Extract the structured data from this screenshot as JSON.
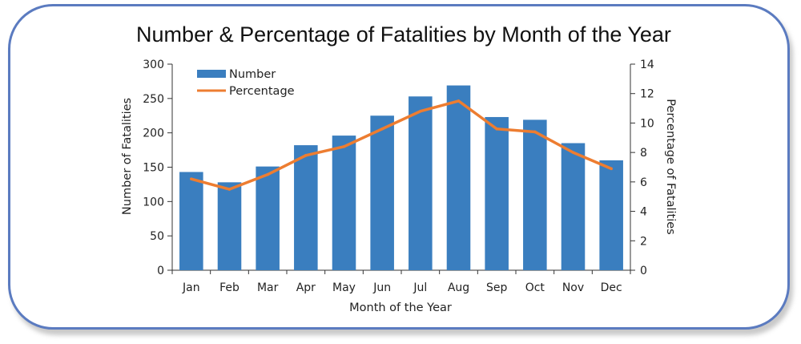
{
  "chart_data": {
    "type": "bar",
    "title": "Number & Percentage of Fatalities by Month of the Year",
    "xlabel": "Month of the Year",
    "ylabel": "Number of Fatalities",
    "y2label": "Percentage of Fatalities",
    "categories": [
      "Jan",
      "Feb",
      "Mar",
      "Apr",
      "May",
      "Jun",
      "Jul",
      "Aug",
      "Sep",
      "Oct",
      "Nov",
      "Dec"
    ],
    "ylim": [
      0,
      300
    ],
    "yticks": [
      0,
      50,
      100,
      150,
      200,
      250,
      300
    ],
    "y2lim": [
      0,
      14
    ],
    "y2ticks": [
      0,
      2,
      4,
      6,
      8,
      10,
      12,
      14
    ],
    "legend_position": "top-left",
    "series": [
      {
        "name": "Number",
        "type": "bar",
        "axis": "left",
        "color": "#3a7ebf",
        "values": [
          143,
          128,
          151,
          182,
          196,
          225,
          253,
          269,
          223,
          219,
          185,
          160
        ]
      },
      {
        "name": "Percentage",
        "type": "line",
        "axis": "right",
        "color": "#ed7d31",
        "values": [
          6.2,
          5.5,
          6.5,
          7.8,
          8.4,
          9.6,
          10.8,
          11.5,
          9.6,
          9.4,
          8.0,
          6.9
        ]
      }
    ]
  }
}
